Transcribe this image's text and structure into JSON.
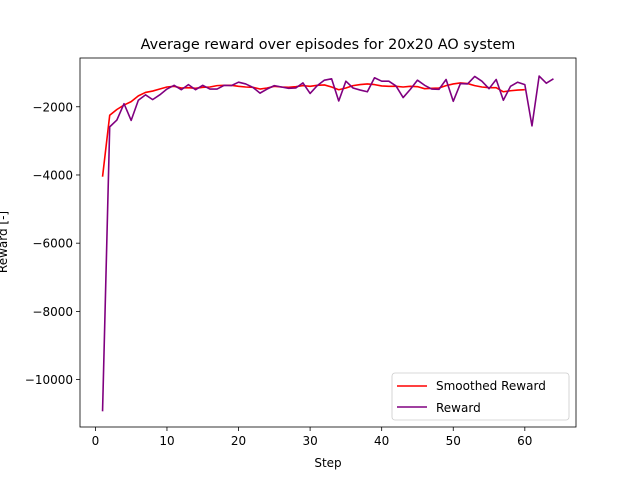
{
  "chart_data": {
    "type": "line",
    "title": "Average reward over episodes for 20x20 AO system",
    "xlabel": "Step",
    "ylabel": "Reward [-]",
    "xlim": [
      -2.15,
      67.15
    ],
    "ylim": [
      -11390,
      -570
    ],
    "xticks": [
      0,
      10,
      20,
      30,
      40,
      50,
      60
    ],
    "yticks": [
      -10000,
      -8000,
      -6000,
      -4000,
      -2000
    ],
    "ytick_labels": [
      "−10000",
      "−8000",
      "−6000",
      "−4000",
      "−2000"
    ],
    "grid": false,
    "legend": {
      "placement": "lower-right"
    },
    "series": [
      {
        "name": "Smoothed Reward",
        "color": "#ff0000",
        "x": [
          1,
          2,
          3,
          4,
          5,
          6,
          7,
          8,
          9,
          10,
          11,
          12,
          13,
          14,
          15,
          16,
          17,
          18,
          19,
          20,
          21,
          22,
          23,
          24,
          25,
          26,
          27,
          28,
          29,
          30,
          31,
          32,
          33,
          34,
          35,
          36,
          37,
          38,
          39,
          40,
          41,
          42,
          43,
          44,
          45,
          46,
          47,
          48,
          49,
          50,
          51,
          52,
          53,
          54,
          55,
          56,
          57,
          58,
          59,
          60
        ],
        "values": [
          -4050,
          -2250,
          -2080,
          -1950,
          -1850,
          -1680,
          -1580,
          -1540,
          -1480,
          -1420,
          -1400,
          -1450,
          -1440,
          -1460,
          -1430,
          -1420,
          -1380,
          -1370,
          -1370,
          -1400,
          -1420,
          -1430,
          -1480,
          -1450,
          -1400,
          -1420,
          -1430,
          -1410,
          -1380,
          -1400,
          -1370,
          -1360,
          -1420,
          -1500,
          -1450,
          -1380,
          -1350,
          -1330,
          -1350,
          -1390,
          -1400,
          -1400,
          -1420,
          -1400,
          -1410,
          -1470,
          -1460,
          -1450,
          -1380,
          -1330,
          -1300,
          -1320,
          -1380,
          -1420,
          -1440,
          -1440,
          -1560,
          -1530,
          -1510,
          -1500
        ]
      },
      {
        "name": "Reward",
        "color": "#800080",
        "x": [
          1,
          2,
          3,
          4,
          5,
          6,
          7,
          8,
          9,
          10,
          11,
          12,
          13,
          14,
          15,
          16,
          17,
          18,
          19,
          20,
          21,
          22,
          23,
          24,
          25,
          26,
          27,
          28,
          29,
          30,
          31,
          32,
          33,
          34,
          35,
          36,
          37,
          38,
          39,
          40,
          41,
          42,
          43,
          44,
          45,
          46,
          47,
          48,
          49,
          50,
          51,
          52,
          53,
          54,
          55,
          56,
          57,
          58,
          59,
          60,
          61,
          62,
          63,
          64
        ],
        "values": [
          -10930,
          -2590,
          -2390,
          -1910,
          -2400,
          -1810,
          -1650,
          -1790,
          -1650,
          -1480,
          -1370,
          -1500,
          -1350,
          -1500,
          -1370,
          -1480,
          -1480,
          -1370,
          -1380,
          -1280,
          -1330,
          -1430,
          -1600,
          -1480,
          -1380,
          -1420,
          -1460,
          -1450,
          -1300,
          -1610,
          -1380,
          -1220,
          -1180,
          -1830,
          -1250,
          -1450,
          -1510,
          -1560,
          -1150,
          -1250,
          -1250,
          -1390,
          -1730,
          -1490,
          -1220,
          -1370,
          -1480,
          -1490,
          -1200,
          -1840,
          -1320,
          -1330,
          -1110,
          -1250,
          -1470,
          -1200,
          -1810,
          -1400,
          -1280,
          -1350,
          -2560,
          -1100,
          -1310,
          -1180
        ]
      }
    ]
  }
}
